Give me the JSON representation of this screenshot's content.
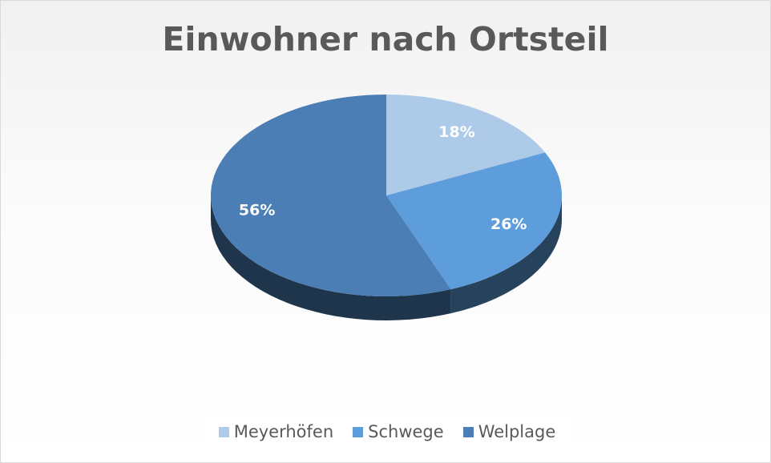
{
  "chart_data": {
    "type": "pie",
    "title": "Einwohner nach Ortsteil",
    "slices": [
      {
        "name": "Meyerhöfen",
        "value": 18,
        "label": "18%",
        "color": "#aecae9"
      },
      {
        "name": "Schwege",
        "value": 26,
        "label": "26%",
        "color": "#5d9ddb"
      },
      {
        "name": "Welplage",
        "value": 56,
        "label": "56%",
        "color": "#4a7eb4"
      }
    ],
    "legend_position": "bottom",
    "style": "3d"
  }
}
